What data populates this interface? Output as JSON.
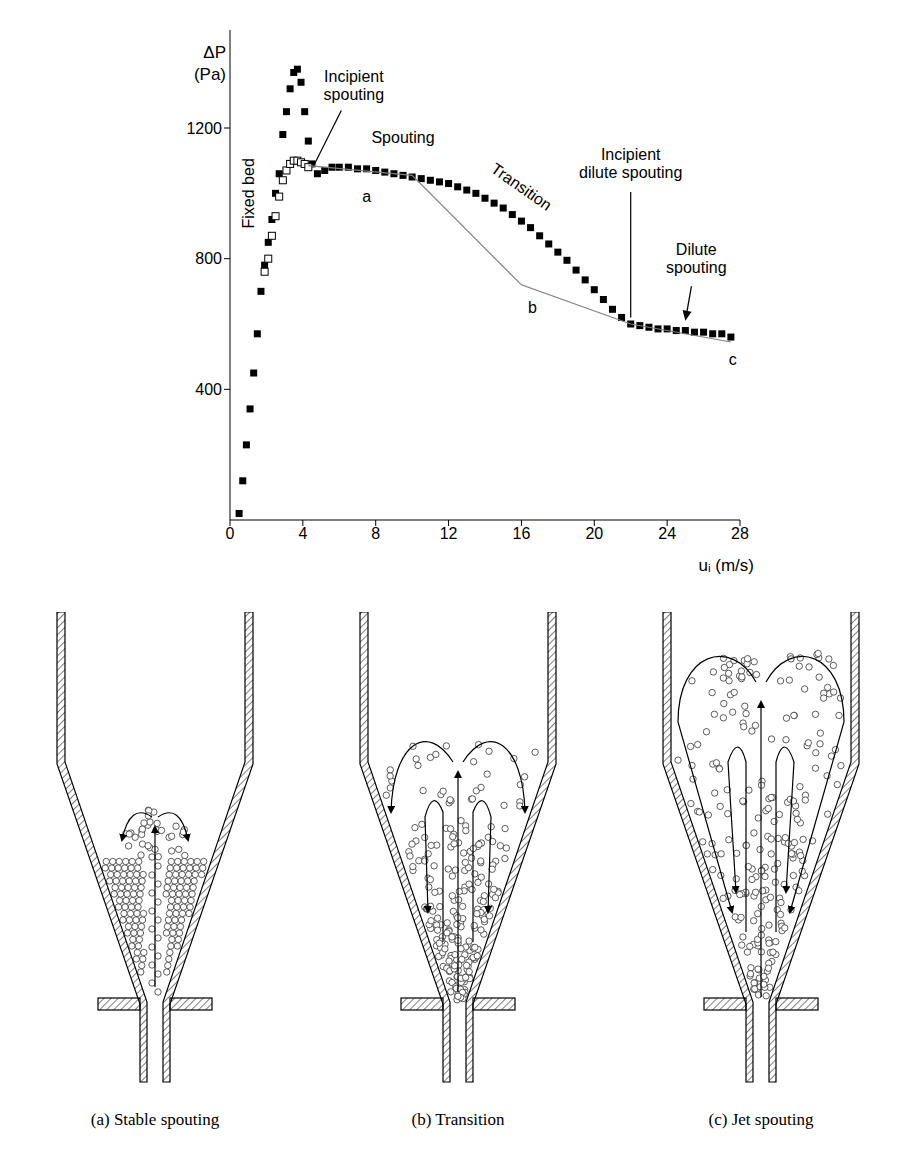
{
  "chart_data": {
    "type": "scatter",
    "x_label": "uᵢ (m/s)",
    "y_label": "ΔP (Pa)",
    "xlim": [
      0,
      28
    ],
    "xticks": [
      0,
      4,
      8,
      12,
      16,
      20,
      24,
      28
    ],
    "ylim": [
      0,
      1500
    ],
    "yticks": [
      400,
      800,
      1200
    ],
    "grid": false,
    "series": [
      {
        "color": "#000000",
        "marker": "square",
        "x": [
          0.5,
          0.7,
          0.9,
          1.1,
          1.3,
          1.5,
          1.7,
          1.9,
          2.1,
          2.3,
          2.5,
          2.7,
          2.9,
          3.1,
          3.3,
          3.5,
          3.7,
          3.9,
          4.1,
          4.3,
          4.5,
          4.8,
          5.2,
          5.6,
          6.0,
          6.5,
          7.0,
          7.5,
          8.0,
          8.5,
          9.0,
          9.5,
          10.0,
          10.5,
          11.0,
          11.5,
          12.0,
          12.5,
          13.0,
          13.5,
          14.0,
          14.5,
          15.0,
          15.5,
          16.0,
          16.5,
          17.0,
          17.5,
          18.0,
          18.5,
          19.0,
          19.5,
          20.0,
          20.5,
          21.0,
          21.5,
          22.0,
          22.5,
          23.0,
          23.5,
          24.0,
          24.5,
          25.0,
          25.5,
          26.0,
          26.5,
          27.0,
          27.5
        ],
        "values": [
          20,
          120,
          230,
          340,
          450,
          570,
          700,
          780,
          850,
          920,
          1000,
          1060,
          1180,
          1250,
          1320,
          1370,
          1380,
          1340,
          1250,
          1160,
          1090,
          1060,
          1070,
          1080,
          1080,
          1080,
          1075,
          1075,
          1070,
          1065,
          1060,
          1055,
          1050,
          1045,
          1040,
          1035,
          1030,
          1020,
          1010,
          1000,
          985,
          970,
          955,
          935,
          915,
          895,
          870,
          845,
          820,
          795,
          765,
          735,
          705,
          675,
          645,
          620,
          600,
          595,
          590,
          585,
          585,
          580,
          580,
          575,
          575,
          570,
          570,
          560
        ]
      },
      {
        "color": "#000000",
        "marker": "hollow",
        "x": [
          1.9,
          2.1,
          2.3,
          2.5,
          2.7,
          2.9,
          3.1,
          3.3,
          3.5,
          3.7,
          3.9,
          4.1,
          4.3
        ],
        "values": [
          760,
          800,
          870,
          930,
          990,
          1040,
          1070,
          1090,
          1100,
          1100,
          1095,
          1090,
          1080
        ]
      },
      {
        "type": "line",
        "color": "#808080",
        "marker": "none",
        "x": [
          4.3,
          10,
          16,
          22,
          27.5
        ],
        "values": [
          1085,
          1055,
          720,
          600,
          545
        ]
      }
    ],
    "annotations": [
      {
        "text": "Fixed bed",
        "x": 1.0,
        "y": 1000
      },
      {
        "text": "Incipient spouting",
        "x": 6.8,
        "y": 1330,
        "target": {
          "x": 4.6,
          "y": 1085
        }
      },
      {
        "text": "Spouting",
        "x": 9.5,
        "y": 1170
      },
      {
        "text": "Transition",
        "x": 16,
        "y": 1020
      },
      {
        "text": "Incipient dilute spouting",
        "x": 22,
        "y": 1090,
        "target": {
          "x": 22,
          "y": 620
        }
      },
      {
        "text": "Dilute spouting",
        "x": 25.6,
        "y": 800,
        "target": {
          "x": 25,
          "y": 610
        }
      },
      {
        "text": "a",
        "x": 7.5,
        "y": 990
      },
      {
        "text": "b",
        "x": 16.6,
        "y": 650
      },
      {
        "text": "c",
        "x": 27.6,
        "y": 490
      }
    ]
  },
  "diagrams": [
    {
      "caption": "(a) Stable spouting"
    },
    {
      "caption": "(b) Transition"
    },
    {
      "caption": "(c) Jet spouting"
    }
  ]
}
